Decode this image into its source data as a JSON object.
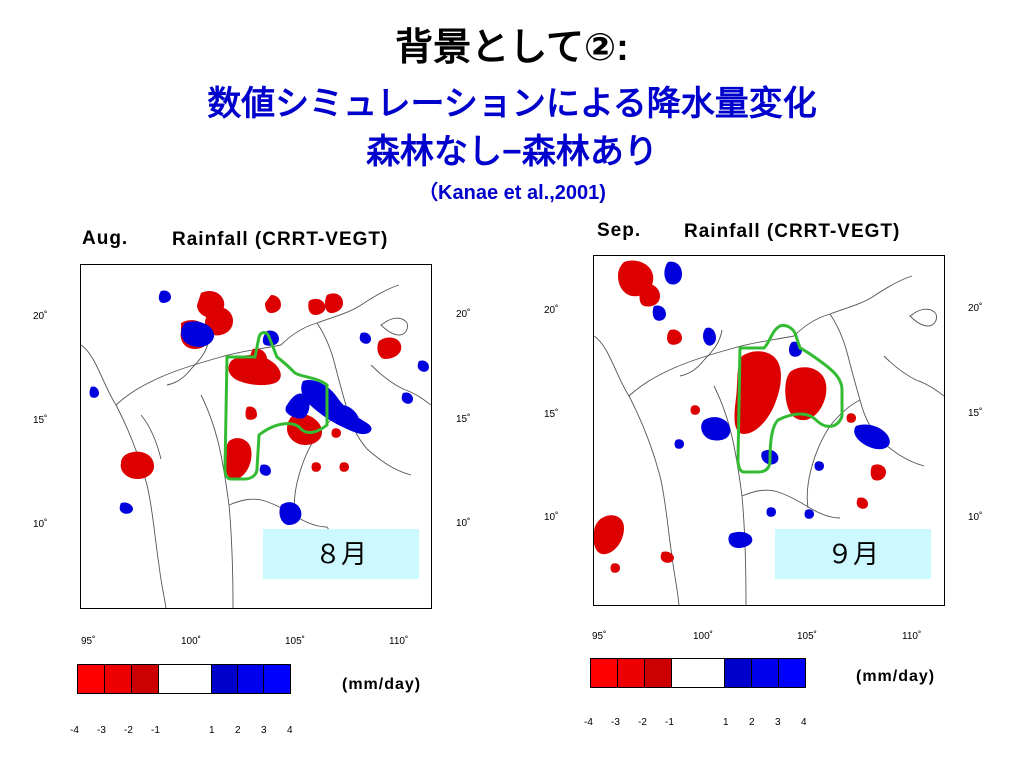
{
  "header": {
    "title": "背景として②:",
    "subtitle_line1": "数値シミュレーションによる降水量変化",
    "subtitle_line2": "森林なし−森林あり",
    "citation": "（Kanae et al.,2001)"
  },
  "panels": [
    {
      "month_label": "Aug.",
      "title": "Rainfall (CRRT-VEGT)",
      "badge": "８月",
      "lat_labels": [
        "20˚",
        "15˚",
        "10˚"
      ],
      "lon_labels": [
        "95˚",
        "100˚",
        "105˚",
        "110˚"
      ]
    },
    {
      "month_label": "Sep.",
      "title": "Rainfall (CRRT-VEGT)",
      "badge": "９月",
      "lat_labels": [
        "20˚",
        "15˚",
        "10˚"
      ],
      "lon_labels": [
        "95˚",
        "100˚",
        "105˚",
        "110˚"
      ]
    }
  ],
  "colorbar": {
    "units": "(mm/day)",
    "ticks": [
      "-4",
      "-3",
      "-2",
      "-1",
      "1",
      "2",
      "3",
      "4"
    ],
    "colors": [
      "#ff0000",
      "#ee0000",
      "#cc0000",
      "#ffffff",
      "#0000cc",
      "#0000ee",
      "#0000ff"
    ]
  }
}
